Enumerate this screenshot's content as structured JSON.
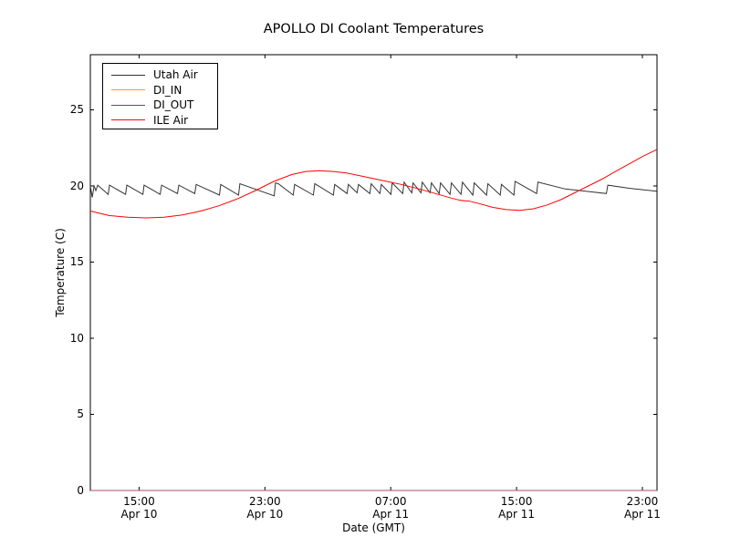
{
  "figure": {
    "title": "APOLLO DI Coolant Temperatures",
    "xlabel": "Date (GMT)",
    "ylabel": "Temperature (C)"
  },
  "chart_data": {
    "type": "line",
    "title": "APOLLO DI Coolant Temperatures",
    "xlabel": "Date (GMT)",
    "ylabel": "Temperature (C)",
    "x_unit": "hours since Apr 10 00:00 GMT",
    "xlim": [
      11.9,
      47.93
    ],
    "ylim": [
      0,
      28.62
    ],
    "grid": false,
    "legend_position": "upper left",
    "frame_color": "#000000",
    "x_ticks": [
      {
        "t": 15,
        "time": "15:00",
        "date": "Apr 10"
      },
      {
        "t": 23,
        "time": "23:00",
        "date": "Apr 10"
      },
      {
        "t": 31,
        "time": "07:00",
        "date": "Apr 11"
      },
      {
        "t": 39,
        "time": "15:00",
        "date": "Apr 11"
      },
      {
        "t": 47,
        "time": "23:00",
        "date": "Apr 11"
      }
    ],
    "y_ticks": [
      0,
      5,
      10,
      15,
      20,
      25
    ],
    "series": [
      {
        "name": "Utah Air",
        "color": "#333333",
        "opacity": 1,
        "points": [
          [
            11.9,
            20.0
          ],
          [
            12.02,
            19.25
          ],
          [
            12.14,
            20.0
          ],
          [
            12.25,
            19.7
          ],
          [
            12.37,
            20.05
          ],
          [
            13.04,
            19.45
          ],
          [
            13.12,
            20.05
          ],
          [
            14.14,
            19.45
          ],
          [
            14.22,
            20.05
          ],
          [
            15.24,
            19.45
          ],
          [
            15.32,
            20.05
          ],
          [
            16.34,
            19.45
          ],
          [
            16.43,
            20.05
          ],
          [
            17.44,
            19.5
          ],
          [
            17.53,
            20.05
          ],
          [
            18.54,
            19.5
          ],
          [
            18.63,
            20.1
          ],
          [
            20.11,
            19.4
          ],
          [
            20.19,
            20.1
          ],
          [
            21.32,
            19.4
          ],
          [
            21.41,
            20.15
          ],
          [
            23.59,
            19.35
          ],
          [
            23.67,
            20.2
          ],
          [
            23.85,
            20.15
          ],
          [
            24.8,
            19.4
          ],
          [
            24.89,
            20.1
          ],
          [
            26.08,
            19.4
          ],
          [
            26.17,
            20.15
          ],
          [
            27.35,
            19.4
          ],
          [
            27.44,
            20.1
          ],
          [
            28.22,
            19.5
          ],
          [
            28.31,
            20.1
          ],
          [
            28.86,
            19.55
          ],
          [
            28.95,
            20.1
          ],
          [
            29.67,
            19.5
          ],
          [
            29.76,
            20.15
          ],
          [
            30.31,
            19.5
          ],
          [
            30.4,
            20.1
          ],
          [
            31.01,
            19.45
          ],
          [
            31.09,
            20.2
          ],
          [
            31.76,
            19.5
          ],
          [
            31.85,
            20.25
          ],
          [
            32.34,
            19.55
          ],
          [
            32.42,
            20.2
          ],
          [
            32.92,
            19.55
          ],
          [
            33.01,
            20.25
          ],
          [
            33.5,
            19.55
          ],
          [
            33.59,
            20.2
          ],
          [
            34.08,
            19.5
          ],
          [
            34.17,
            20.2
          ],
          [
            34.77,
            19.45
          ],
          [
            34.86,
            20.2
          ],
          [
            35.47,
            19.45
          ],
          [
            35.56,
            20.25
          ],
          [
            36.22,
            19.4
          ],
          [
            36.31,
            20.2
          ],
          [
            37.09,
            19.4
          ],
          [
            37.18,
            20.15
          ],
          [
            37.96,
            19.4
          ],
          [
            38.04,
            20.1
          ],
          [
            38.83,
            19.4
          ],
          [
            38.91,
            20.3
          ],
          [
            40.28,
            19.5
          ],
          [
            40.36,
            20.25
          ],
          [
            42.1,
            19.8
          ],
          [
            44.71,
            19.5
          ],
          [
            44.8,
            20.05
          ],
          [
            46.16,
            19.85
          ],
          [
            47.9,
            19.65
          ]
        ]
      },
      {
        "name": "DI_IN",
        "color": "#ffa500",
        "opacity": 1,
        "points": [
          [
            11.9,
            0.0
          ],
          [
            47.93,
            0.0
          ]
        ]
      },
      {
        "name": "DI_OUT",
        "color": "#8b2f9b",
        "opacity": 0.75,
        "points": [
          [
            11.9,
            0.0
          ],
          [
            47.93,
            0.0
          ]
        ]
      },
      {
        "name": "ILE Air",
        "color": "#ff0000",
        "opacity": 1,
        "points": [
          [
            11.9,
            18.35
          ],
          [
            13.12,
            18.05
          ],
          [
            14.28,
            17.95
          ],
          [
            15.44,
            17.9
          ],
          [
            16.6,
            17.95
          ],
          [
            17.76,
            18.1
          ],
          [
            18.92,
            18.35
          ],
          [
            20.08,
            18.7
          ],
          [
            21.24,
            19.15
          ],
          [
            22.4,
            19.7
          ],
          [
            23.56,
            20.3
          ],
          [
            24.72,
            20.75
          ],
          [
            25.59,
            20.95
          ],
          [
            26.46,
            21.0
          ],
          [
            27.33,
            20.95
          ],
          [
            28.2,
            20.85
          ],
          [
            29.35,
            20.6
          ],
          [
            30.51,
            20.35
          ],
          [
            31.67,
            20.1
          ],
          [
            32.83,
            19.8
          ],
          [
            34.86,
            19.2
          ],
          [
            35.44,
            19.05
          ],
          [
            36.02,
            19.0
          ],
          [
            36.6,
            18.85
          ],
          [
            37.47,
            18.6
          ],
          [
            38.34,
            18.45
          ],
          [
            39.21,
            18.4
          ],
          [
            40.08,
            18.5
          ],
          [
            40.95,
            18.75
          ],
          [
            41.82,
            19.1
          ],
          [
            42.69,
            19.55
          ],
          [
            43.56,
            20.0
          ],
          [
            44.43,
            20.45
          ],
          [
            45.29,
            20.95
          ],
          [
            46.16,
            21.45
          ],
          [
            47.03,
            21.95
          ],
          [
            47.93,
            22.4
          ]
        ]
      }
    ]
  }
}
